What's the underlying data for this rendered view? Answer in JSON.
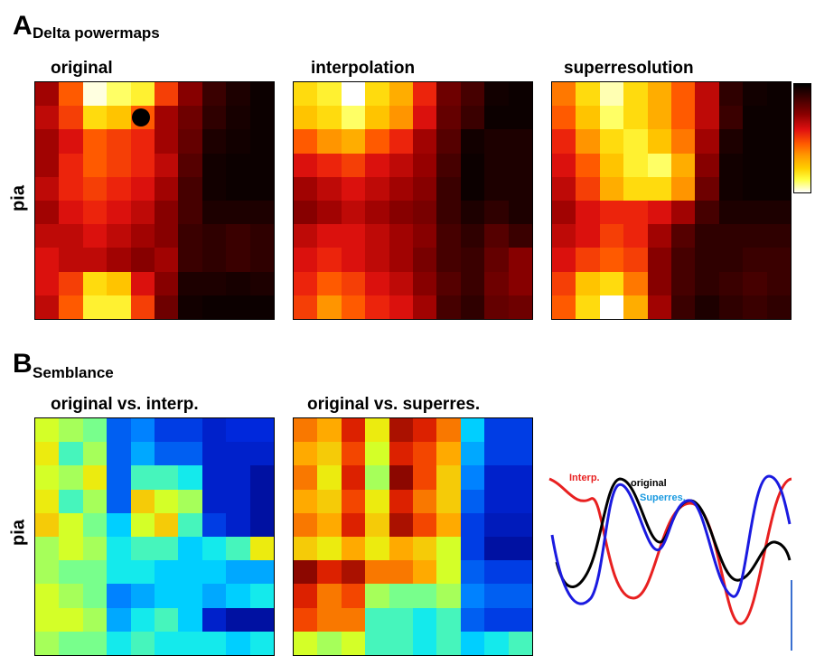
{
  "panelA": {
    "letter": "A",
    "title": "Delta powermaps",
    "ylabel": "pia",
    "maps": [
      {
        "title": "original",
        "palette": "hot",
        "grid": [
          [
            0.3,
            0.55,
            0.98,
            0.9,
            0.85,
            0.5,
            0.25,
            0.1,
            0.05,
            0.02
          ],
          [
            0.35,
            0.5,
            0.8,
            0.75,
            0.55,
            0.3,
            0.2,
            0.08,
            0.04,
            0.02
          ],
          [
            0.3,
            0.4,
            0.55,
            0.5,
            0.45,
            0.3,
            0.18,
            0.05,
            0.03,
            0.02
          ],
          [
            0.3,
            0.45,
            0.55,
            0.5,
            0.45,
            0.35,
            0.15,
            0.03,
            0.02,
            0.02
          ],
          [
            0.35,
            0.45,
            0.5,
            0.45,
            0.4,
            0.3,
            0.12,
            0.03,
            0.02,
            0.02
          ],
          [
            0.3,
            0.4,
            0.45,
            0.4,
            0.35,
            0.25,
            0.12,
            0.05,
            0.05,
            0.05
          ],
          [
            0.35,
            0.35,
            0.4,
            0.35,
            0.3,
            0.25,
            0.1,
            0.08,
            0.1,
            0.08
          ],
          [
            0.4,
            0.35,
            0.35,
            0.3,
            0.25,
            0.3,
            0.1,
            0.08,
            0.1,
            0.08
          ],
          [
            0.4,
            0.5,
            0.8,
            0.75,
            0.4,
            0.25,
            0.05,
            0.05,
            0.04,
            0.05
          ],
          [
            0.35,
            0.55,
            0.85,
            0.85,
            0.5,
            0.2,
            0.03,
            0.02,
            0.02,
            0.02
          ]
        ]
      },
      {
        "title": "interpolation",
        "palette": "hot",
        "grid": [
          [
            0.8,
            0.85,
            1.0,
            0.8,
            0.7,
            0.45,
            0.2,
            0.12,
            0.03,
            0.02
          ],
          [
            0.75,
            0.8,
            0.9,
            0.75,
            0.65,
            0.4,
            0.18,
            0.1,
            0.02,
            0.02
          ],
          [
            0.55,
            0.65,
            0.7,
            0.55,
            0.45,
            0.3,
            0.15,
            0.03,
            0.05,
            0.05
          ],
          [
            0.4,
            0.45,
            0.5,
            0.4,
            0.35,
            0.28,
            0.12,
            0.02,
            0.05,
            0.05
          ],
          [
            0.3,
            0.35,
            0.4,
            0.35,
            0.3,
            0.25,
            0.1,
            0.02,
            0.05,
            0.05
          ],
          [
            0.25,
            0.3,
            0.35,
            0.3,
            0.25,
            0.22,
            0.1,
            0.05,
            0.08,
            0.05
          ],
          [
            0.35,
            0.4,
            0.4,
            0.35,
            0.3,
            0.25,
            0.12,
            0.08,
            0.15,
            0.1
          ],
          [
            0.4,
            0.45,
            0.4,
            0.35,
            0.3,
            0.22,
            0.12,
            0.1,
            0.18,
            0.25
          ],
          [
            0.45,
            0.55,
            0.5,
            0.4,
            0.35,
            0.25,
            0.15,
            0.1,
            0.2,
            0.25
          ],
          [
            0.5,
            0.65,
            0.55,
            0.45,
            0.4,
            0.3,
            0.12,
            0.08,
            0.18,
            0.2
          ]
        ]
      },
      {
        "title": "superresolution",
        "palette": "hot",
        "grid": [
          [
            0.6,
            0.8,
            0.95,
            0.8,
            0.7,
            0.55,
            0.35,
            0.08,
            0.03,
            0.02
          ],
          [
            0.55,
            0.75,
            0.9,
            0.8,
            0.7,
            0.55,
            0.35,
            0.1,
            0.02,
            0.02
          ],
          [
            0.45,
            0.65,
            0.8,
            0.85,
            0.75,
            0.6,
            0.3,
            0.05,
            0.02,
            0.02
          ],
          [
            0.4,
            0.55,
            0.75,
            0.85,
            0.9,
            0.7,
            0.25,
            0.03,
            0.02,
            0.02
          ],
          [
            0.35,
            0.5,
            0.7,
            0.8,
            0.8,
            0.65,
            0.2,
            0.03,
            0.02,
            0.02
          ],
          [
            0.3,
            0.4,
            0.45,
            0.45,
            0.4,
            0.3,
            0.12,
            0.05,
            0.05,
            0.05
          ],
          [
            0.35,
            0.4,
            0.5,
            0.45,
            0.3,
            0.15,
            0.08,
            0.08,
            0.08,
            0.08
          ],
          [
            0.4,
            0.5,
            0.55,
            0.5,
            0.25,
            0.12,
            0.08,
            0.08,
            0.1,
            0.1
          ],
          [
            0.5,
            0.75,
            0.8,
            0.6,
            0.25,
            0.12,
            0.08,
            0.1,
            0.12,
            0.1
          ],
          [
            0.55,
            0.8,
            1.0,
            0.7,
            0.3,
            0.1,
            0.05,
            0.08,
            0.1,
            0.08
          ]
        ]
      }
    ]
  },
  "panelB": {
    "letter": "B",
    "title": "Semblance",
    "ylabel": "pia",
    "maps": [
      {
        "title": "original vs. interp.",
        "palette": "jet",
        "grid": [
          [
            0.6,
            0.55,
            0.5,
            0.2,
            0.25,
            0.15,
            0.15,
            0.1,
            0.12,
            0.12
          ],
          [
            0.65,
            0.45,
            0.55,
            0.2,
            0.3,
            0.2,
            0.2,
            0.1,
            0.1,
            0.1
          ],
          [
            0.6,
            0.55,
            0.65,
            0.2,
            0.45,
            0.45,
            0.4,
            0.1,
            0.1,
            0.05
          ],
          [
            0.65,
            0.45,
            0.55,
            0.2,
            0.7,
            0.6,
            0.55,
            0.1,
            0.1,
            0.05
          ],
          [
            0.7,
            0.6,
            0.5,
            0.35,
            0.6,
            0.7,
            0.45,
            0.15,
            0.1,
            0.05
          ],
          [
            0.55,
            0.6,
            0.55,
            0.4,
            0.45,
            0.45,
            0.35,
            0.4,
            0.45,
            0.65
          ],
          [
            0.55,
            0.5,
            0.5,
            0.4,
            0.4,
            0.35,
            0.35,
            0.35,
            0.3,
            0.3
          ],
          [
            0.6,
            0.55,
            0.5,
            0.25,
            0.3,
            0.35,
            0.35,
            0.3,
            0.35,
            0.4
          ],
          [
            0.6,
            0.6,
            0.55,
            0.3,
            0.4,
            0.45,
            0.35,
            0.1,
            0.05,
            0.05
          ],
          [
            0.55,
            0.5,
            0.5,
            0.4,
            0.45,
            0.4,
            0.4,
            0.4,
            0.35,
            0.4
          ]
        ]
      },
      {
        "title": "original vs. superres.",
        "palette": "jet",
        "grid": [
          [
            0.8,
            0.75,
            0.9,
            0.65,
            0.95,
            0.9,
            0.8,
            0.35,
            0.15,
            0.15
          ],
          [
            0.75,
            0.7,
            0.85,
            0.6,
            0.9,
            0.85,
            0.75,
            0.3,
            0.15,
            0.15
          ],
          [
            0.8,
            0.65,
            0.9,
            0.55,
            0.98,
            0.85,
            0.7,
            0.25,
            0.1,
            0.1
          ],
          [
            0.75,
            0.7,
            0.85,
            0.65,
            0.9,
            0.8,
            0.7,
            0.2,
            0.1,
            0.1
          ],
          [
            0.8,
            0.75,
            0.9,
            0.7,
            0.95,
            0.85,
            0.75,
            0.15,
            0.08,
            0.08
          ],
          [
            0.7,
            0.65,
            0.75,
            0.65,
            0.75,
            0.7,
            0.6,
            0.15,
            0.05,
            0.05
          ],
          [
            0.98,
            0.9,
            0.95,
            0.8,
            0.8,
            0.75,
            0.6,
            0.2,
            0.15,
            0.15
          ],
          [
            0.9,
            0.8,
            0.85,
            0.55,
            0.5,
            0.5,
            0.55,
            0.25,
            0.2,
            0.2
          ],
          [
            0.85,
            0.8,
            0.8,
            0.45,
            0.45,
            0.4,
            0.45,
            0.2,
            0.15,
            0.15
          ],
          [
            0.6,
            0.55,
            0.6,
            0.45,
            0.45,
            0.4,
            0.45,
            0.35,
            0.4,
            0.45
          ]
        ]
      }
    ]
  },
  "waves": {
    "labels": {
      "interp": "Interp.",
      "original": "original",
      "superres": "Superres."
    },
    "colors": {
      "interp": "#e82020",
      "original": "#000000",
      "superres": "#1a1ae0"
    }
  },
  "colors": {
    "waves_scalebar": "#3a6fd0"
  }
}
